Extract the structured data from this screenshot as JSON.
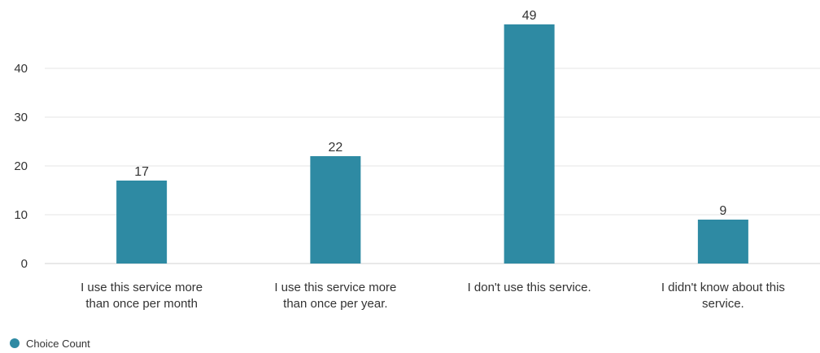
{
  "chart_data": {
    "type": "bar",
    "categories": [
      [
        "I use this service more",
        "than once per month"
      ],
      [
        "I use this service more",
        "than once per year."
      ],
      [
        "I don't use this service."
      ],
      [
        "I didn't know about this",
        "service."
      ]
    ],
    "series": [
      {
        "name": "Choice Count",
        "values": [
          17,
          22,
          49,
          9
        ],
        "color": "#2e8aa3"
      }
    ],
    "data_labels": [
      "17",
      "22",
      "49",
      "9"
    ],
    "ylim": [
      0,
      50
    ],
    "yticks": [
      0,
      10,
      20,
      30,
      40
    ],
    "ytick_labels": [
      "0",
      "10",
      "20",
      "30",
      "40"
    ],
    "grid": true,
    "legend_position": "bottom-left",
    "colors": {
      "bar": "#2e8aa3",
      "grid": "#e6e6e6",
      "text": "#333333"
    }
  }
}
